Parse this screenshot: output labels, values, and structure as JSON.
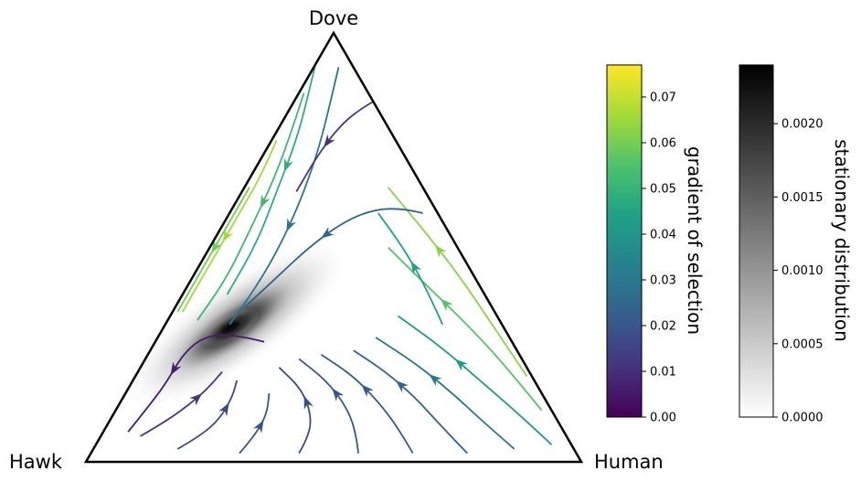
{
  "chart_data": {
    "type": "ternary-streamplot",
    "vertices": {
      "top": "Dove",
      "left": "Hawk",
      "right": "Human"
    },
    "stationary_peak": {
      "Hawk": 0.62,
      "Dove": 0.28,
      "Human": 0.1
    },
    "streamlines": [
      {
        "points": [
          [
            0.5,
            0.28,
            0.22
          ],
          [
            0.56,
            0.3,
            0.14
          ],
          [
            0.62,
            0.29,
            0.09
          ],
          [
            0.68,
            0.25,
            0.07
          ],
          [
            0.75,
            0.18,
            0.07
          ],
          [
            0.82,
            0.12,
            0.06
          ],
          [
            0.88,
            0.07,
            0.05
          ]
        ],
        "level": 0.006
      },
      {
        "points": [
          [
            0.86,
            0.06,
            0.08
          ],
          [
            0.8,
            0.09,
            0.11
          ],
          [
            0.73,
            0.13,
            0.14
          ],
          [
            0.67,
            0.17,
            0.16
          ],
          [
            0.62,
            0.21,
            0.17
          ]
        ],
        "level": 0.012
      },
      {
        "points": [
          [
            0.8,
            0.03,
            0.17
          ],
          [
            0.74,
            0.06,
            0.2
          ],
          [
            0.68,
            0.1,
            0.22
          ],
          [
            0.63,
            0.15,
            0.22
          ],
          [
            0.6,
            0.19,
            0.21
          ]
        ],
        "level": 0.016
      },
      {
        "points": [
          [
            0.68,
            0.02,
            0.3
          ],
          [
            0.63,
            0.06,
            0.31
          ],
          [
            0.58,
            0.11,
            0.31
          ],
          [
            0.55,
            0.16,
            0.29
          ]
        ],
        "level": 0.02
      },
      {
        "points": [
          [
            0.56,
            0.02,
            0.42
          ],
          [
            0.52,
            0.06,
            0.42
          ],
          [
            0.49,
            0.11,
            0.4
          ],
          [
            0.48,
            0.17,
            0.35
          ],
          [
            0.5,
            0.22,
            0.28
          ]
        ],
        "level": 0.018
      },
      {
        "points": [
          [
            0.44,
            0.02,
            0.54
          ],
          [
            0.42,
            0.07,
            0.51
          ],
          [
            0.41,
            0.13,
            0.46
          ],
          [
            0.42,
            0.19,
            0.39
          ],
          [
            0.45,
            0.24,
            0.31
          ]
        ],
        "level": 0.02
      },
      {
        "points": [
          [
            0.33,
            0.02,
            0.65
          ],
          [
            0.33,
            0.08,
            0.59
          ],
          [
            0.34,
            0.14,
            0.52
          ],
          [
            0.36,
            0.2,
            0.44
          ],
          [
            0.4,
            0.25,
            0.35
          ]
        ],
        "level": 0.022
      },
      {
        "points": [
          [
            0.22,
            0.02,
            0.76
          ],
          [
            0.24,
            0.08,
            0.68
          ],
          [
            0.26,
            0.15,
            0.59
          ],
          [
            0.29,
            0.21,
            0.5
          ],
          [
            0.33,
            0.26,
            0.41
          ]
        ],
        "level": 0.024
      },
      {
        "points": [
          [
            0.12,
            0.03,
            0.85
          ],
          [
            0.15,
            0.09,
            0.76
          ],
          [
            0.18,
            0.16,
            0.66
          ],
          [
            0.22,
            0.23,
            0.55
          ],
          [
            0.27,
            0.29,
            0.44
          ]
        ],
        "level": 0.03
      },
      {
        "points": [
          [
            0.04,
            0.04,
            0.92
          ],
          [
            0.07,
            0.11,
            0.82
          ],
          [
            0.11,
            0.19,
            0.7
          ],
          [
            0.15,
            0.27,
            0.58
          ],
          [
            0.2,
            0.34,
            0.46
          ]
        ],
        "level": 0.042
      },
      {
        "points": [
          [
            0.02,
            0.12,
            0.86
          ],
          [
            0.04,
            0.22,
            0.74
          ],
          [
            0.07,
            0.32,
            0.61
          ],
          [
            0.11,
            0.42,
            0.47
          ],
          [
            0.14,
            0.5,
            0.36
          ]
        ],
        "level": 0.056
      },
      {
        "points": [
          [
            0.01,
            0.2,
            0.79
          ],
          [
            0.02,
            0.32,
            0.66
          ],
          [
            0.03,
            0.44,
            0.53
          ],
          [
            0.05,
            0.55,
            0.4
          ],
          [
            0.07,
            0.64,
            0.29
          ]
        ],
        "level": 0.063
      },
      {
        "points": [
          [
            0.12,
            0.32,
            0.56
          ],
          [
            0.11,
            0.41,
            0.48
          ],
          [
            0.11,
            0.5,
            0.39
          ],
          [
            0.12,
            0.58,
            0.3
          ]
        ],
        "level": 0.044
      },
      {
        "points": [
          [
            0.03,
            0.58,
            0.39
          ],
          [
            0.06,
            0.59,
            0.35
          ],
          [
            0.12,
            0.59,
            0.29
          ],
          [
            0.2,
            0.56,
            0.24
          ],
          [
            0.3,
            0.5,
            0.2
          ],
          [
            0.4,
            0.43,
            0.17
          ],
          [
            0.5,
            0.36,
            0.14
          ]
        ],
        "level": 0.024
      },
      {
        "points": [
          [
            0.03,
            0.92,
            0.05
          ],
          [
            0.1,
            0.82,
            0.08
          ],
          [
            0.18,
            0.71,
            0.11
          ],
          [
            0.27,
            0.6,
            0.13
          ],
          [
            0.36,
            0.5,
            0.14
          ],
          [
            0.45,
            0.41,
            0.14
          ],
          [
            0.55,
            0.32,
            0.13
          ]
        ],
        "level": 0.03
      },
      {
        "points": [
          [
            0.05,
            0.96,
            -0.01
          ],
          [
            0.12,
            0.86,
            0.02
          ],
          [
            0.2,
            0.75,
            0.05
          ],
          [
            0.3,
            0.63,
            0.07
          ],
          [
            0.4,
            0.51,
            0.09
          ],
          [
            0.52,
            0.39,
            0.09
          ]
        ],
        "level": 0.048
      },
      {
        "points": [
          [
            0.13,
            0.86,
            0.01
          ],
          [
            0.2,
            0.77,
            0.03
          ],
          [
            0.29,
            0.66,
            0.05
          ],
          [
            0.39,
            0.55,
            0.06
          ],
          [
            0.5,
            0.43,
            0.07
          ],
          [
            0.61,
            0.33,
            0.06
          ]
        ],
        "level": 0.052
      },
      {
        "points": [
          [
            0.24,
            0.75,
            0.01
          ],
          [
            0.31,
            0.67,
            0.02
          ],
          [
            0.4,
            0.58,
            0.02
          ],
          [
            0.51,
            0.47,
            0.02
          ],
          [
            0.63,
            0.35,
            0.02
          ]
        ],
        "level": 0.066
      },
      {
        "points": [
          [
            0.35,
            0.64,
            0.01
          ],
          [
            0.44,
            0.55,
            0.01
          ],
          [
            0.54,
            0.45,
            0.01
          ],
          [
            0.64,
            0.35,
            0.01
          ]
        ],
        "level": 0.06
      },
      {
        "points": [
          [
            0.0,
            0.84,
            0.16
          ],
          [
            0.04,
            0.82,
            0.14
          ],
          [
            0.1,
            0.78,
            0.12
          ],
          [
            0.18,
            0.71,
            0.11
          ],
          [
            0.26,
            0.63,
            0.11
          ]
        ],
        "level": 0.012
      }
    ],
    "colorbars": [
      {
        "label": "gradient of selection",
        "colormap": "viridis",
        "range": [
          0,
          0.077
        ],
        "ticks": [
          "0.00",
          "0.01",
          "0.02",
          "0.03",
          "0.04",
          "0.05",
          "0.06",
          "0.07"
        ]
      },
      {
        "label": "stationary distribution",
        "colormap": "gray_r",
        "range": [
          0,
          0.0024
        ],
        "ticks": [
          "0.0000",
          "0.0005",
          "0.0010",
          "0.0015",
          "0.0020"
        ]
      }
    ]
  }
}
